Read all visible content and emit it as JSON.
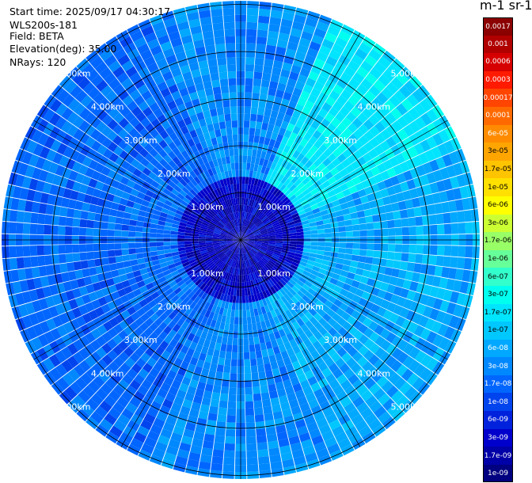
{
  "header": {
    "start_time": "Start time: 2025/09/17 04:30:17",
    "instrument": "WLS200s-181",
    "field": "Field: BETA",
    "elevation": "Elevation(deg): 35.00",
    "nrays": "NRays: 120"
  },
  "colorbar": {
    "title": "m-1 sr-1",
    "ticks": [
      "0.0017",
      "0.001",
      "0.0006",
      "0.0003",
      "0.00017",
      "0.0001",
      "6e-05",
      "3e-05",
      "1.7e-05",
      "1e-05",
      "6e-06",
      "3e-06",
      "1.7e-06",
      "1e-06",
      "6e-07",
      "3e-07",
      "1.7e-07",
      "1e-07",
      "6e-08",
      "3e-08",
      "1.7e-08",
      "1e-08",
      "6e-09",
      "3e-09",
      "1.7e-09",
      "1e-09"
    ],
    "colors": [
      "#8b0000",
      "#b00000",
      "#d60000",
      "#ff1a00",
      "#ff4500",
      "#ff6a00",
      "#ff8c00",
      "#ffa500",
      "#ffc400",
      "#ffe000",
      "#ffff00",
      "#ccff33",
      "#99ff66",
      "#66ff99",
      "#33ffcc",
      "#00ffee",
      "#00e5ff",
      "#00c8ff",
      "#00a8ff",
      "#0088ff",
      "#0066ff",
      "#0044ee",
      "#0022dd",
      "#0000cc",
      "#0000a8",
      "#000080"
    ]
  },
  "chart_data": {
    "type": "heatmap",
    "projection": "polar-ppi",
    "field": "BETA",
    "units": "m-1 sr-1",
    "nrays": 120,
    "elevation_deg": 35.0,
    "range_rings_km": [
      1.0,
      2.0,
      3.0,
      4.0,
      5.0
    ],
    "ring_labels": [
      "1.00km",
      "2.00km",
      "3.00km",
      "4.00km",
      "5.00km"
    ],
    "max_range_km": 5.0,
    "spokes_deg": [
      0,
      30,
      60,
      90,
      120,
      150,
      180,
      210,
      240,
      270,
      300,
      330
    ],
    "sector_dominant_value": {
      "N": "3e-08",
      "NE": "1.7e-07",
      "E": "6e-08",
      "SE": "6e-08",
      "S": "3e-08",
      "SW": "1.7e-08",
      "W": "1.7e-08",
      "NW": "1.7e-08",
      "center": "3e-09"
    },
    "color_scale": "log",
    "vmin": "1e-09",
    "vmax": "0.0017"
  }
}
